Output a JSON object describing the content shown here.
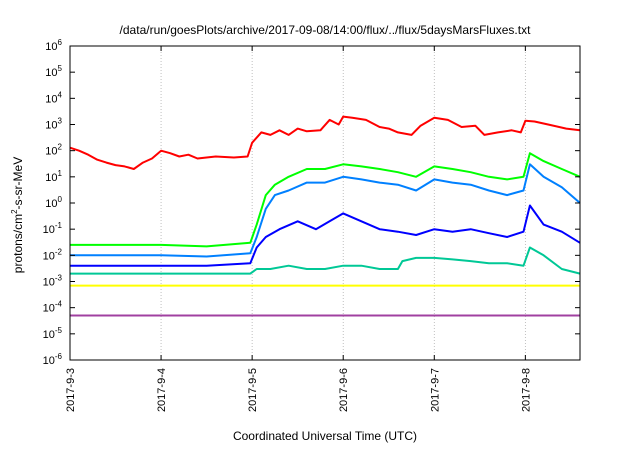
{
  "chart_data": {
    "type": "line",
    "title": "/data/run/goesPlots/archive/2017-09-08/14:00/flux/../flux/5daysMarsFluxes.txt",
    "xlabel": "Coordinated Universal Time (UTC)",
    "ylabel_parts": [
      "protons/cm",
      "2",
      "-s-sr-MeV"
    ],
    "yscale": "log",
    "ylim_exp": [
      -6,
      6
    ],
    "ytick_exps": [
      -6,
      -5,
      -4,
      -3,
      -2,
      -1,
      0,
      1,
      2,
      3,
      4,
      5,
      6
    ],
    "ytick_base": "10",
    "xlim_days": [
      0,
      5.6
    ],
    "xtick_labels": [
      "2017-9-3",
      "2017-9-4",
      "2017-9-5",
      "2017-9-6",
      "2017-9-7",
      "2017-9-8"
    ],
    "xtick_days": [
      0,
      1,
      2,
      3,
      4,
      5
    ],
    "grid": true,
    "legend": "none",
    "series": [
      {
        "color": "#ff0000",
        "values": [
          [
            0,
            130
          ],
          [
            0.1,
            100
          ],
          [
            0.2,
            70
          ],
          [
            0.3,
            45
          ],
          [
            0.4,
            35
          ],
          [
            0.5,
            28
          ],
          [
            0.6,
            25
          ],
          [
            0.7,
            20
          ],
          [
            0.8,
            35
          ],
          [
            0.9,
            50
          ],
          [
            1.0,
            100
          ],
          [
            1.1,
            80
          ],
          [
            1.2,
            60
          ],
          [
            1.3,
            70
          ],
          [
            1.4,
            50
          ],
          [
            1.6,
            60
          ],
          [
            1.8,
            55
          ],
          [
            1.95,
            60
          ],
          [
            2.0,
            200
          ],
          [
            2.1,
            500
          ],
          [
            2.2,
            400
          ],
          [
            2.3,
            600
          ],
          [
            2.4,
            400
          ],
          [
            2.5,
            700
          ],
          [
            2.6,
            550
          ],
          [
            2.75,
            600
          ],
          [
            2.85,
            1500
          ],
          [
            2.95,
            1000
          ],
          [
            3.0,
            2000
          ],
          [
            3.1,
            1800
          ],
          [
            3.25,
            1500
          ],
          [
            3.4,
            800
          ],
          [
            3.5,
            700
          ],
          [
            3.6,
            500
          ],
          [
            3.75,
            400
          ],
          [
            3.85,
            900
          ],
          [
            4.0,
            1800
          ],
          [
            4.15,
            1500
          ],
          [
            4.3,
            800
          ],
          [
            4.45,
            900
          ],
          [
            4.55,
            400
          ],
          [
            4.7,
            500
          ],
          [
            4.85,
            600
          ],
          [
            4.95,
            500
          ],
          [
            5.0,
            1400
          ],
          [
            5.1,
            1300
          ],
          [
            5.25,
            1000
          ],
          [
            5.45,
            700
          ],
          [
            5.6,
            600
          ]
        ]
      },
      {
        "color": "#00ff00",
        "values": [
          [
            0,
            0.025
          ],
          [
            0.5,
            0.025
          ],
          [
            1.0,
            0.025
          ],
          [
            1.5,
            0.022
          ],
          [
            1.98,
            0.03
          ],
          [
            2.05,
            0.15
          ],
          [
            2.15,
            2
          ],
          [
            2.25,
            5
          ],
          [
            2.4,
            10
          ],
          [
            2.6,
            20
          ],
          [
            2.8,
            20
          ],
          [
            3.0,
            30
          ],
          [
            3.2,
            25
          ],
          [
            3.4,
            20
          ],
          [
            3.6,
            15
          ],
          [
            3.8,
            10
          ],
          [
            4.0,
            25
          ],
          [
            4.2,
            20
          ],
          [
            4.4,
            15
          ],
          [
            4.6,
            10
          ],
          [
            4.8,
            8
          ],
          [
            4.98,
            10
          ],
          [
            5.05,
            80
          ],
          [
            5.2,
            40
          ],
          [
            5.4,
            20
          ],
          [
            5.6,
            10
          ]
        ]
      },
      {
        "color": "#0080ff",
        "values": [
          [
            0,
            0.01
          ],
          [
            0.5,
            0.01
          ],
          [
            1.0,
            0.01
          ],
          [
            1.5,
            0.009
          ],
          [
            1.98,
            0.012
          ],
          [
            2.05,
            0.05
          ],
          [
            2.15,
            0.6
          ],
          [
            2.25,
            2
          ],
          [
            2.4,
            3
          ],
          [
            2.6,
            6
          ],
          [
            2.8,
            6
          ],
          [
            3.0,
            10
          ],
          [
            3.2,
            8
          ],
          [
            3.4,
            6
          ],
          [
            3.6,
            5
          ],
          [
            3.8,
            3
          ],
          [
            4.0,
            8
          ],
          [
            4.2,
            6
          ],
          [
            4.4,
            5
          ],
          [
            4.6,
            3
          ],
          [
            4.8,
            2
          ],
          [
            4.98,
            3
          ],
          [
            5.05,
            30
          ],
          [
            5.2,
            10
          ],
          [
            5.4,
            4
          ],
          [
            5.6,
            1
          ]
        ]
      },
      {
        "color": "#0000ff",
        "values": [
          [
            0,
            0.004
          ],
          [
            0.5,
            0.004
          ],
          [
            1.0,
            0.004
          ],
          [
            1.5,
            0.004
          ],
          [
            1.98,
            0.005
          ],
          [
            2.05,
            0.02
          ],
          [
            2.15,
            0.05
          ],
          [
            2.3,
            0.1
          ],
          [
            2.5,
            0.2
          ],
          [
            2.7,
            0.1
          ],
          [
            2.85,
            0.2
          ],
          [
            3.0,
            0.4
          ],
          [
            3.2,
            0.2
          ],
          [
            3.4,
            0.1
          ],
          [
            3.6,
            0.08
          ],
          [
            3.8,
            0.06
          ],
          [
            4.0,
            0.1
          ],
          [
            4.2,
            0.08
          ],
          [
            4.4,
            0.1
          ],
          [
            4.6,
            0.07
          ],
          [
            4.8,
            0.05
          ],
          [
            4.98,
            0.08
          ],
          [
            5.05,
            0.8
          ],
          [
            5.2,
            0.15
          ],
          [
            5.4,
            0.08
          ],
          [
            5.6,
            0.03
          ]
        ]
      },
      {
        "color": "#00c896",
        "values": [
          [
            0,
            0.002
          ],
          [
            0.5,
            0.002
          ],
          [
            1.0,
            0.002
          ],
          [
            1.5,
            0.002
          ],
          [
            1.98,
            0.002
          ],
          [
            2.05,
            0.003
          ],
          [
            2.2,
            0.003
          ],
          [
            2.4,
            0.004
          ],
          [
            2.6,
            0.003
          ],
          [
            2.8,
            0.003
          ],
          [
            3.0,
            0.004
          ],
          [
            3.2,
            0.004
          ],
          [
            3.4,
            0.003
          ],
          [
            3.6,
            0.003
          ],
          [
            3.65,
            0.006
          ],
          [
            3.8,
            0.008
          ],
          [
            4.0,
            0.008
          ],
          [
            4.2,
            0.007
          ],
          [
            4.4,
            0.006
          ],
          [
            4.6,
            0.005
          ],
          [
            4.8,
            0.005
          ],
          [
            4.98,
            0.004
          ],
          [
            5.05,
            0.02
          ],
          [
            5.2,
            0.01
          ],
          [
            5.4,
            0.003
          ],
          [
            5.6,
            0.002
          ]
        ]
      },
      {
        "color": "#ffff00",
        "values": [
          [
            0,
            0.0007
          ],
          [
            5.6,
            0.0007
          ]
        ]
      },
      {
        "color": "#a040a0",
        "values": [
          [
            0,
            5e-05
          ],
          [
            5.6,
            5e-05
          ]
        ]
      }
    ]
  }
}
